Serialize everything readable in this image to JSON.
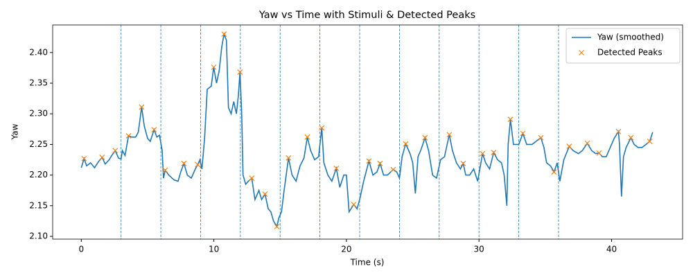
{
  "chart_data": {
    "type": "line",
    "title": "Yaw vs Time with Stimuli & Detected Peaks",
    "x_label": "Time (s)",
    "y_label": "Yaw",
    "x": [
      0,
      0.21,
      0.4,
      0.7,
      1.0,
      1.3,
      1.57,
      1.8,
      2.1,
      2.3,
      2.56,
      2.8,
      3.0,
      3.1,
      3.3,
      3.56,
      3.8,
      4.1,
      4.3,
      4.55,
      4.75,
      5.0,
      5.2,
      5.49,
      5.7,
      5.9,
      6.1,
      6.2,
      6.33,
      6.6,
      7.0,
      7.3,
      7.5,
      7.74,
      8.0,
      8.3,
      8.6,
      8.78,
      8.95,
      9.1,
      9.3,
      9.5,
      9.8,
      9.99,
      10.2,
      10.4,
      10.6,
      10.77,
      10.95,
      11.1,
      11.3,
      11.5,
      11.7,
      11.85,
      11.97,
      12.1,
      12.2,
      12.4,
      12.6,
      12.86,
      13.1,
      13.4,
      13.6,
      13.86,
      14.1,
      14.3,
      14.5,
      14.75,
      14.9,
      15.1,
      15.3,
      15.63,
      15.9,
      16.2,
      16.5,
      16.8,
      17.05,
      17.3,
      17.6,
      17.9,
      18.14,
      18.3,
      18.6,
      18.9,
      19.24,
      19.5,
      19.8,
      20.0,
      20.2,
      20.55,
      20.8,
      21.0,
      21.3,
      21.7,
      22.0,
      22.3,
      22.54,
      22.8,
      23.1,
      23.53,
      23.8,
      24.0,
      24.2,
      24.47,
      24.8,
      25.0,
      25.2,
      25.4,
      25.6,
      25.93,
      26.2,
      26.5,
      26.8,
      27.1,
      27.4,
      27.76,
      28.0,
      28.3,
      28.6,
      28.81,
      29.0,
      29.3,
      29.6,
      29.9,
      30.27,
      30.5,
      30.8,
      31.11,
      31.4,
      31.7,
      31.9,
      32.1,
      32.2,
      32.37,
      32.6,
      33.0,
      33.31,
      33.6,
      34.0,
      34.3,
      34.67,
      34.9,
      35.1,
      35.4,
      35.66,
      35.9,
      36.1,
      36.4,
      36.81,
      37.1,
      37.5,
      37.8,
      38.17,
      38.5,
      38.8,
      39.06,
      39.3,
      39.6,
      39.9,
      40.2,
      40.52,
      40.6,
      40.75,
      40.9,
      41.1,
      41.46,
      41.7,
      42.0,
      42.3,
      42.6,
      42.88,
      43.1
    ],
    "series": [
      {
        "name": "Yaw (smoothed)",
        "color": "#1f77b4",
        "values": [
          2.212,
          2.227,
          2.215,
          2.22,
          2.212,
          2.222,
          2.229,
          2.218,
          2.225,
          2.232,
          2.24,
          2.228,
          2.226,
          2.24,
          2.232,
          2.264,
          2.262,
          2.262,
          2.27,
          2.311,
          2.28,
          2.26,
          2.255,
          2.274,
          2.262,
          2.265,
          2.24,
          2.195,
          2.208,
          2.2,
          2.192,
          2.19,
          2.205,
          2.219,
          2.2,
          2.195,
          2.21,
          2.217,
          2.225,
          2.21,
          2.26,
          2.34,
          2.345,
          2.376,
          2.35,
          2.37,
          2.41,
          2.43,
          2.42,
          2.31,
          2.3,
          2.32,
          2.3,
          2.33,
          2.368,
          2.3,
          2.2,
          2.185,
          2.19,
          2.195,
          2.16,
          2.175,
          2.16,
          2.169,
          2.145,
          2.14,
          2.125,
          2.116,
          2.13,
          2.14,
          2.175,
          2.228,
          2.2,
          2.19,
          2.215,
          2.228,
          2.262,
          2.24,
          2.225,
          2.23,
          2.277,
          2.22,
          2.2,
          2.19,
          2.211,
          2.18,
          2.2,
          2.2,
          2.14,
          2.152,
          2.145,
          2.16,
          2.19,
          2.223,
          2.2,
          2.205,
          2.219,
          2.2,
          2.2,
          2.209,
          2.205,
          2.195,
          2.23,
          2.251,
          2.235,
          2.22,
          2.17,
          2.23,
          2.24,
          2.261,
          2.24,
          2.2,
          2.195,
          2.225,
          2.23,
          2.266,
          2.24,
          2.22,
          2.21,
          2.219,
          2.2,
          2.2,
          2.21,
          2.19,
          2.235,
          2.22,
          2.21,
          2.237,
          2.225,
          2.22,
          2.2,
          2.15,
          2.25,
          2.291,
          2.25,
          2.25,
          2.268,
          2.25,
          2.25,
          2.255,
          2.261,
          2.245,
          2.22,
          2.215,
          2.205,
          2.22,
          2.19,
          2.225,
          2.247,
          2.24,
          2.235,
          2.24,
          2.252,
          2.24,
          2.235,
          2.236,
          2.23,
          2.23,
          2.245,
          2.26,
          2.271,
          2.25,
          2.165,
          2.23,
          2.245,
          2.261,
          2.25,
          2.245,
          2.245,
          2.25,
          2.255,
          2.27
        ]
      },
      {
        "name": "Detected Peaks",
        "color": "#ff7f0e",
        "marker": "x",
        "x": [
          0.21,
          1.57,
          2.56,
          3.56,
          4.55,
          5.49,
          6.33,
          7.74,
          8.78,
          9.99,
          10.77,
          11.97,
          12.86,
          13.86,
          14.75,
          15.63,
          17.05,
          18.14,
          19.24,
          20.55,
          21.7,
          22.54,
          23.53,
          24.47,
          25.93,
          27.76,
          28.81,
          30.27,
          31.11,
          32.37,
          33.31,
          34.67,
          35.66,
          36.81,
          38.17,
          39.06,
          40.52,
          41.46,
          42.88
        ],
        "values": [
          2.227,
          2.229,
          2.24,
          2.264,
          2.311,
          2.274,
          2.208,
          2.219,
          2.217,
          2.376,
          2.43,
          2.368,
          2.195,
          2.169,
          2.116,
          2.228,
          2.262,
          2.277,
          2.211,
          2.152,
          2.223,
          2.219,
          2.209,
          2.251,
          2.261,
          2.266,
          2.219,
          2.235,
          2.237,
          2.291,
          2.268,
          2.261,
          2.205,
          2.247,
          2.252,
          2.236,
          2.271,
          2.261,
          2.255
        ]
      }
    ],
    "stimuli": [
      3,
      6,
      9,
      12,
      15,
      18,
      21,
      24,
      27,
      30,
      33,
      36
    ],
    "stimuli_color": "#1f77b4",
    "xlim": [
      -2.16,
      45.36
    ],
    "ylim": [
      2.0955,
      2.445
    ],
    "xticks": [
      0,
      10,
      20,
      30,
      40
    ],
    "yticks": [
      {
        "value": 2.1,
        "label": "2.10"
      },
      {
        "value": 2.15,
        "label": "2.15"
      },
      {
        "value": 2.2,
        "label": "2.20"
      },
      {
        "value": 2.25,
        "label": "2.25"
      },
      {
        "value": 2.3,
        "label": "2.30"
      },
      {
        "value": 2.35,
        "label": "2.35"
      },
      {
        "value": 2.4,
        "label": "2.40"
      }
    ],
    "legend": "upper right"
  }
}
